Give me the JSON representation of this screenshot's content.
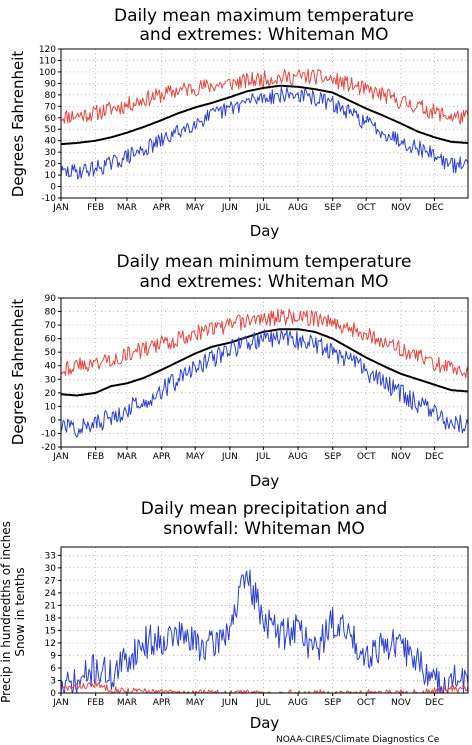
{
  "colors": {
    "max_series": "#e8453c",
    "mean_series": "#000000",
    "min_series": "#2b3fd6",
    "grid": "#999999"
  },
  "credit": "NOAA-CIRES/Climate Diagnostics Ce",
  "chart_data": [
    {
      "type": "line",
      "title": [
        "Daily mean maximum temperature",
        "and extremes: Whiteman MO"
      ],
      "xlabel": "Day",
      "ylabel": [
        "Degrees Fahrenheit"
      ],
      "xticks": [
        "JAN",
        "FEB",
        "MAR",
        "APR",
        "MAY",
        "JUN",
        "JUL",
        "AUG",
        "SEP",
        "OCT",
        "NOV",
        "DEC"
      ],
      "xlim": [
        1,
        365
      ],
      "ylim": [
        -10,
        120
      ],
      "yticks": [
        -10,
        0,
        10,
        20,
        30,
        40,
        50,
        60,
        70,
        80,
        90,
        100,
        110,
        120
      ],
      "grid": true,
      "series": [
        {
          "key": "extreme_high",
          "color": "#e8453c",
          "width": 1,
          "noise": 7,
          "seed": 11,
          "x": [
            1,
            15,
            32,
            46,
            60,
            75,
            91,
            106,
            121,
            136,
            152,
            167,
            182,
            197,
            213,
            228,
            244,
            259,
            274,
            289,
            305,
            320,
            335,
            350,
            365
          ],
          "y": [
            61,
            62,
            64,
            68,
            71,
            76,
            80,
            84,
            86,
            88,
            90,
            92,
            94,
            95,
            96,
            96,
            93,
            89,
            84,
            80,
            74,
            70,
            65,
            61,
            60
          ]
        },
        {
          "key": "mean",
          "color": "#000000",
          "width": 2,
          "noise": 0,
          "seed": 1,
          "x": [
            1,
            15,
            32,
            46,
            60,
            75,
            91,
            106,
            121,
            136,
            152,
            167,
            182,
            197,
            213,
            228,
            244,
            259,
            274,
            289,
            305,
            320,
            335,
            350,
            365
          ],
          "y": [
            37,
            38,
            40,
            43,
            47,
            52,
            58,
            64,
            69,
            73,
            78,
            83,
            86,
            88,
            87,
            85,
            82,
            75,
            68,
            62,
            55,
            48,
            43,
            39,
            38
          ]
        },
        {
          "key": "extreme_low",
          "color": "#2b3fd6",
          "width": 1,
          "noise": 7,
          "seed": 29,
          "x": [
            1,
            15,
            32,
            46,
            60,
            75,
            91,
            106,
            121,
            136,
            152,
            167,
            182,
            197,
            213,
            228,
            244,
            259,
            274,
            289,
            305,
            320,
            335,
            350,
            365
          ],
          "y": [
            12,
            13,
            16,
            20,
            26,
            32,
            40,
            48,
            56,
            62,
            68,
            74,
            78,
            80,
            80,
            77,
            72,
            64,
            56,
            48,
            40,
            34,
            28,
            18,
            20
          ]
        }
      ]
    },
    {
      "type": "line",
      "title": [
        "Daily mean minimum temperature",
        "and extremes: Whiteman MO"
      ],
      "xlabel": "Day",
      "ylabel": [
        "Degrees Fahrenheit"
      ],
      "xticks": [
        "JAN",
        "FEB",
        "MAR",
        "APR",
        "MAY",
        "JUN",
        "JUL",
        "AUG",
        "SEP",
        "OCT",
        "NOV",
        "DEC"
      ],
      "xlim": [
        1,
        365
      ],
      "ylim": [
        -20,
        90
      ],
      "yticks": [
        -20,
        -10,
        0,
        10,
        20,
        30,
        40,
        50,
        60,
        70,
        80,
        90
      ],
      "grid": true,
      "series": [
        {
          "key": "extreme_high",
          "color": "#e8453c",
          "width": 1,
          "noise": 6,
          "seed": 43,
          "x": [
            1,
            15,
            32,
            46,
            60,
            75,
            91,
            106,
            121,
            136,
            152,
            167,
            182,
            197,
            213,
            228,
            244,
            259,
            274,
            289,
            305,
            320,
            335,
            350,
            365
          ],
          "y": [
            38,
            40,
            42,
            45,
            48,
            52,
            56,
            60,
            64,
            67,
            70,
            73,
            75,
            76,
            76,
            75,
            72,
            68,
            63,
            58,
            52,
            47,
            42,
            38,
            36
          ]
        },
        {
          "key": "mean",
          "color": "#000000",
          "width": 2,
          "noise": 0,
          "seed": 2,
          "x": [
            1,
            15,
            32,
            46,
            60,
            75,
            91,
            106,
            121,
            136,
            152,
            167,
            182,
            197,
            213,
            228,
            244,
            259,
            274,
            289,
            305,
            320,
            335,
            350,
            365
          ],
          "y": [
            19,
            18,
            20,
            25,
            27,
            31,
            37,
            43,
            49,
            54,
            57,
            61,
            65,
            67,
            67,
            65,
            60,
            53,
            46,
            40,
            34,
            30,
            26,
            22,
            21
          ]
        },
        {
          "key": "extreme_low",
          "color": "#2b3fd6",
          "width": 1,
          "noise": 7,
          "seed": 57,
          "x": [
            1,
            15,
            32,
            46,
            60,
            75,
            91,
            106,
            121,
            136,
            152,
            167,
            182,
            197,
            213,
            228,
            244,
            259,
            274,
            289,
            305,
            320,
            335,
            350,
            365
          ],
          "y": [
            -5,
            -6,
            -3,
            2,
            8,
            14,
            22,
            30,
            38,
            45,
            52,
            57,
            60,
            61,
            59,
            56,
            51,
            44,
            36,
            28,
            20,
            12,
            5,
            -4,
            -2
          ]
        }
      ]
    },
    {
      "type": "line",
      "title": [
        "Daily mean precipitation and",
        "snowfall: Whiteman MO"
      ],
      "xlabel": "Day",
      "ylabel": [
        "Precip in hundredths of inches",
        "Snow in tenths"
      ],
      "xticks": [
        "JAN",
        "FEB",
        "MAR",
        "APR",
        "MAY",
        "JUN",
        "JUL",
        "AUG",
        "SEP",
        "OCT",
        "NOV",
        "DEC"
      ],
      "xlim": [
        1,
        365
      ],
      "ylim": [
        0,
        35
      ],
      "yticks": [
        0,
        3,
        6,
        9,
        12,
        15,
        18,
        21,
        24,
        27,
        30,
        33
      ],
      "grid": true,
      "series": [
        {
          "key": "precip",
          "color": "#2b3fd6",
          "width": 1,
          "noise": 4,
          "seed": 71,
          "x": [
            1,
            15,
            32,
            46,
            60,
            75,
            91,
            106,
            121,
            136,
            152,
            167,
            182,
            197,
            213,
            228,
            244,
            259,
            274,
            289,
            305,
            320,
            335,
            350,
            365
          ],
          "y": [
            1,
            2,
            6,
            4,
            8,
            12,
            13,
            14,
            12,
            11,
            16,
            28,
            18,
            14,
            16,
            10,
            17,
            14,
            9,
            12,
            11,
            8,
            2,
            3,
            3
          ]
        },
        {
          "key": "snow",
          "color": "#e8453c",
          "width": 1,
          "noise": 0.8,
          "seed": 83,
          "x": [
            1,
            15,
            32,
            46,
            60,
            75,
            91,
            106,
            121,
            136,
            152,
            167,
            182,
            197,
            213,
            228,
            244,
            259,
            274,
            289,
            305,
            320,
            335,
            350,
            365
          ],
          "y": [
            1,
            1.5,
            2,
            1,
            0.5,
            0.4,
            0.2,
            0,
            0,
            0,
            0,
            0,
            0,
            0,
            0,
            0,
            0,
            0,
            0,
            0,
            0,
            0,
            0.5,
            1,
            1
          ]
        }
      ]
    }
  ]
}
